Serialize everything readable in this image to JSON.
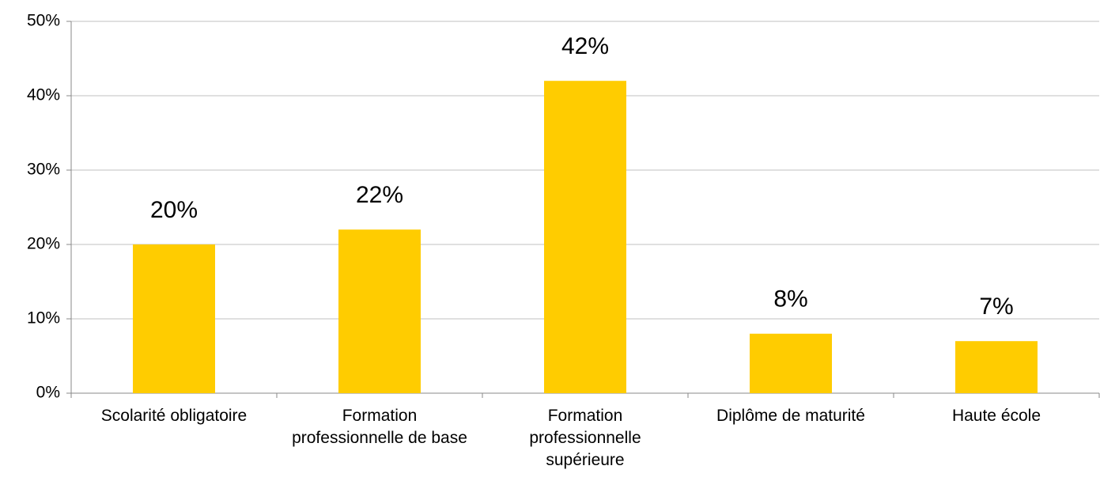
{
  "chart_data": {
    "type": "bar",
    "categories": [
      "Scolarité obligatoire",
      "Formation professionnelle de base",
      "Formation professionnelle supérieure",
      "Diplôme de maturité",
      "Haute école"
    ],
    "values": [
      20,
      22,
      42,
      8,
      7
    ],
    "value_labels": [
      "20%",
      "22%",
      "42%",
      "8%",
      "7%"
    ],
    "color": "#ffcc00",
    "ylim": [
      0,
      50
    ],
    "yticks": [
      {
        "value": 0,
        "label": "0%"
      },
      {
        "value": 10,
        "label": "10%"
      },
      {
        "value": 20,
        "label": "20%"
      },
      {
        "value": 30,
        "label": "30%"
      },
      {
        "value": 40,
        "label": "40%"
      },
      {
        "value": 50,
        "label": "50%"
      }
    ],
    "grid": true
  }
}
